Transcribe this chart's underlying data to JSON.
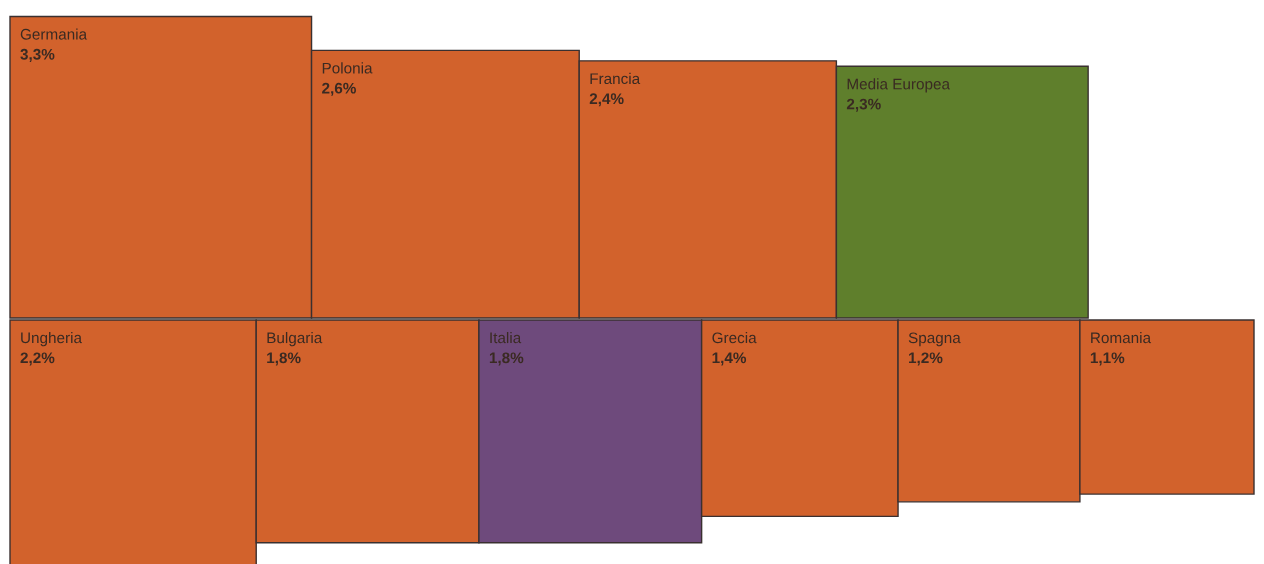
{
  "chart_data": {
    "type": "other",
    "categories": [
      "Germania",
      "Polonia",
      "Francia",
      "Media Europea",
      "Ungheria",
      "Bulgaria",
      "Italia",
      "Grecia",
      "Spagna",
      "Romania"
    ],
    "values": [
      3.3,
      2.6,
      2.4,
      2.3,
      2.2,
      1.8,
      1.8,
      1.4,
      1.2,
      1.1
    ],
    "value_labels": [
      "3,3%",
      "2,6%",
      "2,4%",
      "2,3%",
      "2,2%",
      "1,8%",
      "1,8%",
      "1,4%",
      "1,2%",
      "1,1%"
    ],
    "colors": [
      "#d2622c",
      "#d2622c",
      "#d2622c",
      "#5f7f2c",
      "#d2622c",
      "#d2622c",
      "#6e4a7c",
      "#d2622c",
      "#d2622c",
      "#d2622c"
    ]
  }
}
